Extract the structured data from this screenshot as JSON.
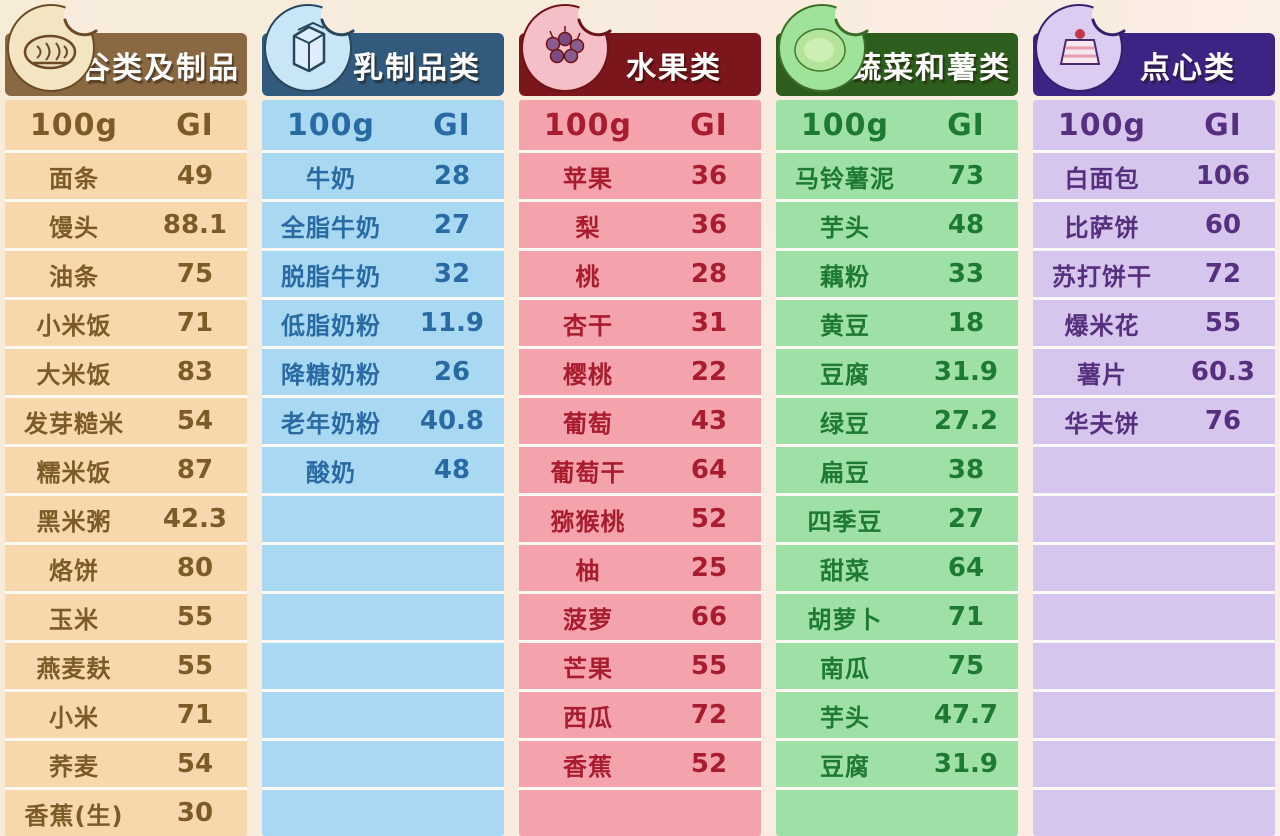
{
  "page": {
    "background": "#f8ecdf",
    "unit_header": "100g",
    "index_header": "GI"
  },
  "chart_data": [
    {
      "type": "table",
      "category": "谷类及制品",
      "icon": "grains-icon",
      "columns": [
        "100g",
        "GI"
      ],
      "rows": [
        [
          "面条",
          "49"
        ],
        [
          "馒头",
          "88.1"
        ],
        [
          "油条",
          "75"
        ],
        [
          "小米饭",
          "71"
        ],
        [
          "大米饭",
          "83"
        ],
        [
          "发芽糙米",
          "54"
        ],
        [
          "糯米饭",
          "87"
        ],
        [
          "黑米粥",
          "42.3"
        ],
        [
          "烙饼",
          "80"
        ],
        [
          "玉米",
          "55"
        ],
        [
          "燕麦麸",
          "55"
        ],
        [
          "小米",
          "71"
        ],
        [
          "荞麦",
          "54"
        ],
        [
          "香蕉(生)",
          "30"
        ]
      ],
      "empty_rows": 0,
      "colors": {
        "banner": "#8a6942",
        "body": "#f6d8ac",
        "text": "#7d5a28",
        "icon_bg": "#f3e4c2",
        "icon_rim": "#6b4a24"
      }
    },
    {
      "type": "table",
      "category": "乳制品类",
      "icon": "milk-icon",
      "columns": [
        "100g",
        "GI"
      ],
      "rows": [
        [
          "牛奶",
          "28"
        ],
        [
          "全脂牛奶",
          "27"
        ],
        [
          "脱脂牛奶",
          "32"
        ],
        [
          "低脂奶粉",
          "11.9"
        ],
        [
          "降糖奶粉",
          "26"
        ],
        [
          "老年奶粉",
          "40.8"
        ],
        [
          "酸奶",
          "48"
        ]
      ],
      "empty_rows": 7,
      "colors": {
        "banner": "#315a7c",
        "body": "#a9d9f2",
        "text": "#2a6aa3",
        "icon_bg": "#c9e6f7",
        "icon_rim": "#27465e"
      }
    },
    {
      "type": "table",
      "category": "水果类",
      "icon": "fruit-icon",
      "columns": [
        "100g",
        "GI"
      ],
      "rows": [
        [
          "苹果",
          "36"
        ],
        [
          "梨",
          "36"
        ],
        [
          "桃",
          "28"
        ],
        [
          "杏干",
          "31"
        ],
        [
          "樱桃",
          "22"
        ],
        [
          "葡萄",
          "43"
        ],
        [
          "葡萄干",
          "64"
        ],
        [
          "猕猴桃",
          "52"
        ],
        [
          "柚",
          "25"
        ],
        [
          "菠萝",
          "66"
        ],
        [
          "芒果",
          "55"
        ],
        [
          "西瓜",
          "72"
        ],
        [
          "香蕉",
          "52"
        ]
      ],
      "empty_rows": 1,
      "colors": {
        "banner": "#7c161d",
        "body": "#f4a3ad",
        "text": "#a81c30",
        "icon_bg": "#f4bfc6",
        "icon_rim": "#6e1218"
      }
    },
    {
      "type": "table",
      "category": "蔬菜和薯类",
      "icon": "vegetable-icon",
      "columns": [
        "100g",
        "GI"
      ],
      "rows": [
        [
          "马铃薯泥",
          "73"
        ],
        [
          "芋头",
          "48"
        ],
        [
          "藕粉",
          "33"
        ],
        [
          "黄豆",
          "18"
        ],
        [
          "豆腐",
          "31.9"
        ],
        [
          "绿豆",
          "27.2"
        ],
        [
          "扁豆",
          "38"
        ],
        [
          "四季豆",
          "27"
        ],
        [
          "甜菜",
          "64"
        ],
        [
          "胡萝卜",
          "71"
        ],
        [
          "南瓜",
          "75"
        ],
        [
          "芋头",
          "47.7"
        ],
        [
          "豆腐",
          "31.9"
        ]
      ],
      "empty_rows": 1,
      "colors": {
        "banner": "#2d5e1d",
        "body": "#9fe0a7",
        "text": "#1e7a33",
        "icon_bg": "#9fe39b",
        "icon_rim": "#3a6e28"
      }
    },
    {
      "type": "table",
      "category": "点心类",
      "icon": "dessert-icon",
      "columns": [
        "100g",
        "GI"
      ],
      "rows": [
        [
          "白面包",
          "106"
        ],
        [
          "比萨饼",
          "60"
        ],
        [
          "苏打饼干",
          "72"
        ],
        [
          "爆米花",
          "55"
        ],
        [
          "薯片",
          "60.3"
        ],
        [
          "华夫饼",
          "76"
        ]
      ],
      "empty_rows": 8,
      "colors": {
        "banner": "#3d2384",
        "body": "#d6c6ee",
        "text": "#55307e",
        "icon_bg": "#ddccf2",
        "icon_rim": "#34206a"
      }
    }
  ]
}
